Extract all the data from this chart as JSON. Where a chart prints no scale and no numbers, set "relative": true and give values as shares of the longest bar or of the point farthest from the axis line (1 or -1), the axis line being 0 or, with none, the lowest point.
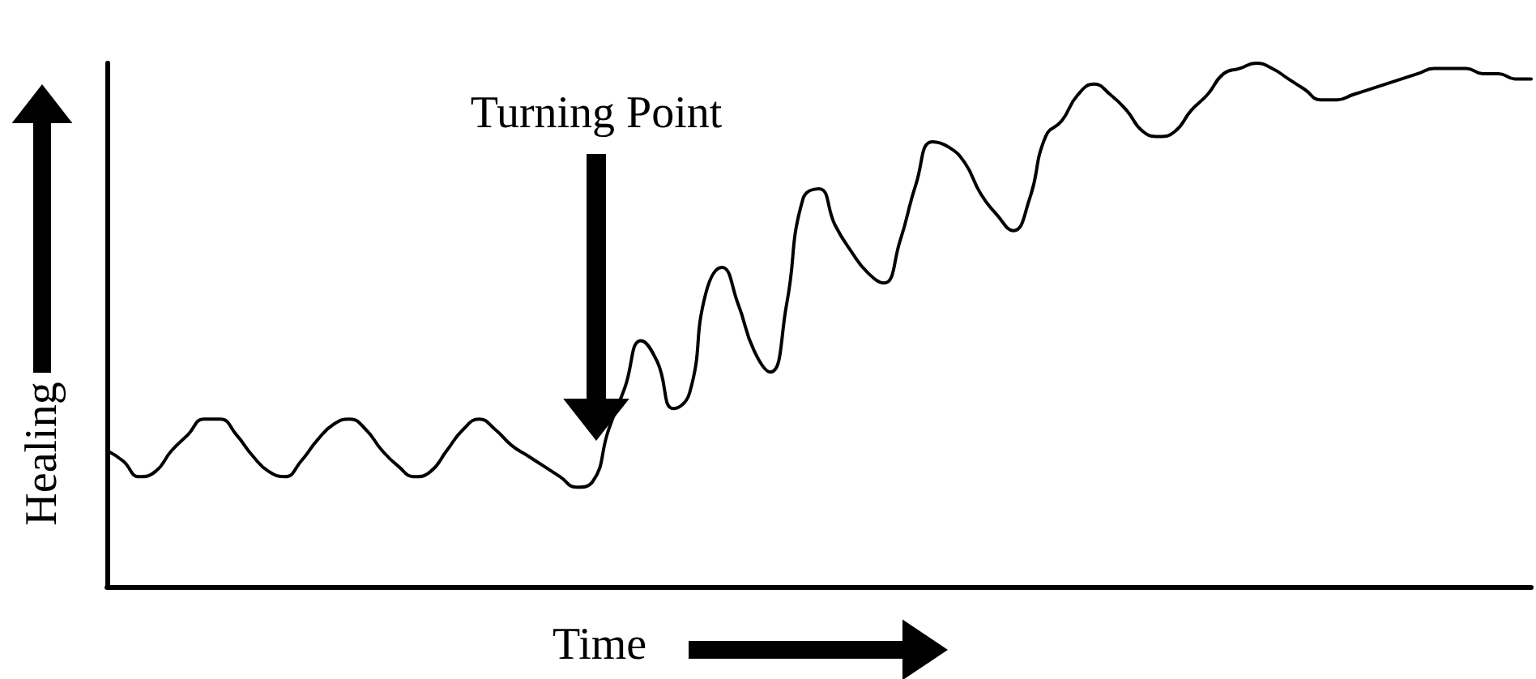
{
  "chart_data": {
    "type": "line",
    "relative": true,
    "xlabel": "Time",
    "ylabel": "Healing",
    "grid": false,
    "marker": "none",
    "line_style": "solid",
    "annotations": [
      "Turning Point"
    ],
    "categories": [
      null,
      null,
      null,
      null,
      null,
      null,
      null,
      null,
      null,
      null,
      null,
      null,
      null,
      null,
      null,
      null,
      null,
      null,
      null,
      null,
      null,
      null,
      null,
      null,
      null,
      null,
      null,
      null,
      null,
      null,
      null,
      null,
      null,
      null,
      null,
      null,
      null,
      null,
      null,
      null,
      null,
      null,
      null,
      null,
      null,
      null,
      null,
      null,
      null,
      null,
      null,
      null,
      null,
      null,
      null,
      null,
      null,
      null,
      null,
      null,
      null,
      null,
      null,
      null,
      null,
      null,
      null,
      null,
      null,
      null,
      null,
      null,
      null,
      null,
      null,
      null,
      null,
      null,
      null,
      null,
      null,
      null,
      null,
      null,
      null,
      null,
      null,
      null,
      null
    ],
    "series": [
      {
        "color": "#000000",
        "values": [
          0.26,
          0.24,
          0.21,
          0.22,
          0.26,
          0.29,
          0.32,
          0.32,
          0.29,
          0.25,
          0.22,
          0.21,
          0.24,
          0.28,
          0.31,
          0.32,
          0.3,
          0.26,
          0.23,
          0.21,
          0.22,
          0.26,
          0.3,
          0.32,
          0.3,
          0.27,
          0.25,
          0.23,
          0.21,
          0.19,
          0.2,
          0.3,
          0.38,
          0.47,
          0.43,
          0.34,
          0.37,
          0.56,
          0.61,
          0.54,
          0.45,
          0.41,
          0.54,
          0.74,
          0.76,
          0.69,
          0.64,
          0.6,
          0.58,
          0.66,
          0.77,
          0.85,
          0.84,
          0.81,
          0.75,
          0.71,
          0.68,
          0.74,
          0.86,
          0.89,
          0.94,
          0.96,
          0.94,
          0.91,
          0.87,
          0.86,
          0.87,
          0.91,
          0.94,
          0.98,
          0.99,
          1.0,
          0.99,
          0.97,
          0.95,
          0.93,
          0.93,
          0.94,
          0.95,
          0.96,
          0.97,
          0.98,
          0.99,
          0.99,
          0.99,
          0.98,
          0.98,
          0.97,
          0.97
        ]
      }
    ]
  }
}
